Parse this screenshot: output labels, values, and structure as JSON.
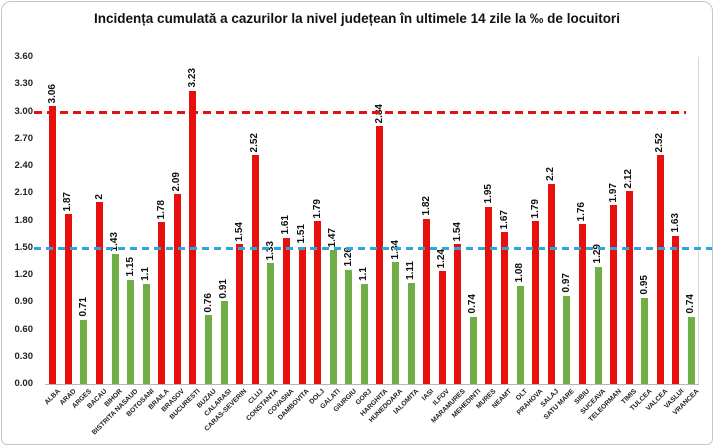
{
  "chart_data": {
    "type": "bar",
    "title": "Incidența cumulată a cazurilor la nivel județean în ultimele 14 zile la ‰ de locuitori",
    "xlabel": "",
    "ylabel": "",
    "ylim": [
      0,
      3.6
    ],
    "ytick_labels": [
      "0.00",
      "0.30",
      "0.60",
      "0.90",
      "1.20",
      "1.50",
      "1.80",
      "2.10",
      "2.40",
      "2.70",
      "3.00",
      "3.30",
      "3.60"
    ],
    "grid": false,
    "legend": "none",
    "bar_palette": {
      "red": "#e8100c",
      "green": "#70ad47"
    },
    "reference_lines": [
      {
        "name": "upper-threshold",
        "value": 3.0,
        "color": "#e01212",
        "style": "dashed"
      },
      {
        "name": "lower-threshold",
        "value": 1.5,
        "color": "#2aa7e0",
        "style": "dashed"
      }
    ],
    "points": [
      {
        "county": "ALBA",
        "label": "3.06",
        "value": 3.06,
        "color": "red"
      },
      {
        "county": "ARAD",
        "label": "1.87",
        "value": 1.87,
        "color": "red"
      },
      {
        "county": "ARGES",
        "label": "0.71",
        "value": 0.71,
        "color": "green"
      },
      {
        "county": "BACAU",
        "label": "2",
        "value": 2.0,
        "color": "red"
      },
      {
        "county": "BIHOR",
        "label": "1.43",
        "value": 1.43,
        "color": "green"
      },
      {
        "county": "BISTRITA NASAUD",
        "label": "1.15",
        "value": 1.15,
        "color": "green"
      },
      {
        "county": "BOTOSANI",
        "label": "1.1",
        "value": 1.1,
        "color": "green"
      },
      {
        "county": "BRAILA",
        "label": "1.78",
        "value": 1.78,
        "color": "red"
      },
      {
        "county": "BRASOV",
        "label": "2.09",
        "value": 2.09,
        "color": "red"
      },
      {
        "county": "BUCURESTI",
        "label": "3.23",
        "value": 3.23,
        "color": "red"
      },
      {
        "county": "BUZAU",
        "label": "0.76",
        "value": 0.76,
        "color": "green"
      },
      {
        "county": "CALARASI",
        "label": "0.91",
        "value": 0.91,
        "color": "green"
      },
      {
        "county": "CARAS-SEVERIN",
        "label": "1.54",
        "value": 1.54,
        "color": "red"
      },
      {
        "county": "CLUJ",
        "label": "2.52",
        "value": 2.52,
        "color": "red"
      },
      {
        "county": "CONSTANTA",
        "label": "1.33",
        "value": 1.33,
        "color": "green"
      },
      {
        "county": "COVASNA",
        "label": "1.61",
        "value": 1.61,
        "color": "red"
      },
      {
        "county": "DAMBOVITA",
        "label": "1.51",
        "value": 1.51,
        "color": "red"
      },
      {
        "county": "DOLJ",
        "label": "1.79",
        "value": 1.79,
        "color": "red"
      },
      {
        "county": "GALATI",
        "label": "1.47",
        "value": 1.47,
        "color": "green"
      },
      {
        "county": "GIURGIU",
        "label": "1.26",
        "value": 1.26,
        "color": "green"
      },
      {
        "county": "GORJ",
        "label": "1.1",
        "value": 1.1,
        "color": "green"
      },
      {
        "county": "HARGHITA",
        "label": "2.84",
        "value": 2.84,
        "color": "red"
      },
      {
        "county": "HUNEDOARA",
        "label": "1.34",
        "value": 1.34,
        "color": "green"
      },
      {
        "county": "IALOMITA",
        "label": "1.11",
        "value": 1.11,
        "color": "green"
      },
      {
        "county": "IASI",
        "label": "1.82",
        "value": 1.82,
        "color": "red"
      },
      {
        "county": "ILFOV",
        "label": "1.24",
        "value": 1.24,
        "color": "red"
      },
      {
        "county": "MARAMURES",
        "label": "1.54",
        "value": 1.54,
        "color": "red"
      },
      {
        "county": "MEHEDINTI",
        "label": "0.74",
        "value": 0.74,
        "color": "green"
      },
      {
        "county": "MURES",
        "label": "1.95",
        "value": 1.95,
        "color": "red"
      },
      {
        "county": "NEAMT",
        "label": "1.67",
        "value": 1.67,
        "color": "red"
      },
      {
        "county": "OLT",
        "label": "1.08",
        "value": 1.08,
        "color": "green"
      },
      {
        "county": "PRAHOVA",
        "label": "1.79",
        "value": 1.79,
        "color": "red"
      },
      {
        "county": "SALAJ",
        "label": "2.2",
        "value": 2.2,
        "color": "red"
      },
      {
        "county": "SATU MARE",
        "label": "0.97",
        "value": 0.97,
        "color": "green"
      },
      {
        "county": "SIBIU",
        "label": "1.76",
        "value": 1.76,
        "color": "red"
      },
      {
        "county": "SUCEAVA",
        "label": "1.29",
        "value": 1.29,
        "color": "green"
      },
      {
        "county": "TELEORMAN",
        "label": "1.97",
        "value": 1.97,
        "color": "red"
      },
      {
        "county": "TIMIS",
        "label": "2.12",
        "value": 2.12,
        "color": "red"
      },
      {
        "county": "TULCEA",
        "label": "0.95",
        "value": 0.95,
        "color": "green"
      },
      {
        "county": "VALCEA",
        "label": "2.52",
        "value": 2.52,
        "color": "red"
      },
      {
        "county": "VASLUI",
        "label": "1.63",
        "value": 1.63,
        "color": "red"
      },
      {
        "county": "VRANCEA",
        "label": "0.74",
        "value": 0.74,
        "color": "green"
      }
    ]
  }
}
